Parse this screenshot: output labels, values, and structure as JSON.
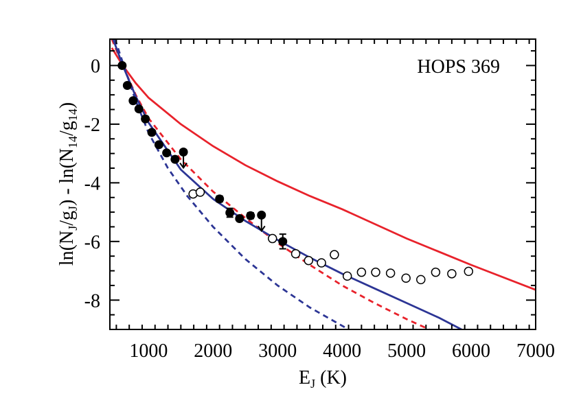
{
  "chart_data": {
    "type": "scatter",
    "annotation": "HOPS 369",
    "xlabel": {
      "main": "E",
      "sub": "J",
      "suffix": " (K)"
    },
    "ylabel": {
      "p1": "ln(N",
      "s1": "J",
      "p2": "/g",
      "s2": "J",
      "p3": ") - ln(N",
      "s3": "14",
      "p4": "/g",
      "s4": "14",
      "p5": ")"
    },
    "xlim": [
      400,
      7000
    ],
    "ylim": [
      -9,
      0.9
    ],
    "x_ticks": [
      1000,
      2000,
      3000,
      4000,
      5000,
      6000,
      7000
    ],
    "y_ticks": [
      0,
      -2,
      -4,
      -6,
      -8
    ],
    "x_tick_labels": [
      "1000",
      "2000",
      "3000",
      "4000",
      "5000",
      "6000",
      "7000"
    ],
    "y_tick_labels": [
      "0",
      "-2",
      "-4",
      "-6",
      "-8"
    ],
    "filled_points": [
      {
        "x": 590,
        "y": 0.0
      },
      {
        "x": 670,
        "y": -0.68
      },
      {
        "x": 760,
        "y": -1.2
      },
      {
        "x": 850,
        "y": -1.48
      },
      {
        "x": 950,
        "y": -1.82
      },
      {
        "x": 1050,
        "y": -2.28
      },
      {
        "x": 1160,
        "y": -2.7
      },
      {
        "x": 1280,
        "y": -2.98
      },
      {
        "x": 1410,
        "y": -3.2
      },
      {
        "x": 2100,
        "y": -4.55,
        "err": 0.1
      },
      {
        "x": 2260,
        "y": -5.02,
        "err": 0.15
      },
      {
        "x": 2410,
        "y": -5.22
      },
      {
        "x": 2580,
        "y": -5.12,
        "err": 0.1
      },
      {
        "x": 3080,
        "y": -6.0,
        "err": 0.25
      }
    ],
    "upper_limits": [
      {
        "x": 1540,
        "y": -2.95
      },
      {
        "x": 2750,
        "y": -5.1
      }
    ],
    "open_points": [
      {
        "x": 1690,
        "y": -4.38
      },
      {
        "x": 1800,
        "y": -4.32
      },
      {
        "x": 2920,
        "y": -5.9
      },
      {
        "x": 3280,
        "y": -6.42
      },
      {
        "x": 3480,
        "y": -6.65
      },
      {
        "x": 3680,
        "y": -6.73
      },
      {
        "x": 3880,
        "y": -6.45
      },
      {
        "x": 4080,
        "y": -7.18
      },
      {
        "x": 4300,
        "y": -7.05
      },
      {
        "x": 4520,
        "y": -7.05
      },
      {
        "x": 4750,
        "y": -7.08
      },
      {
        "x": 4990,
        "y": -7.25
      },
      {
        "x": 5220,
        "y": -7.3
      },
      {
        "x": 5450,
        "y": -7.05
      },
      {
        "x": 5700,
        "y": -7.1
      },
      {
        "x": 5960,
        "y": -7.02
      }
    ],
    "curves": [
      {
        "color": "#e8222b",
        "dash": false,
        "x": [
          430,
          600,
          800,
          1000,
          1500,
          2000,
          2500,
          3000,
          3500,
          4000,
          5000,
          6000,
          7000
        ],
        "y": [
          0.6,
          0.0,
          -0.6,
          -1.1,
          -2.0,
          -2.75,
          -3.4,
          -3.95,
          -4.45,
          -4.9,
          -5.9,
          -6.8,
          -7.65
        ]
      },
      {
        "color": "#e8222b",
        "dash": true,
        "x": [
          430,
          600,
          800,
          1000,
          1500,
          2000,
          2500,
          3000,
          3500,
          4000,
          4500,
          5000,
          5350
        ],
        "y": [
          0.9,
          0.0,
          -1.0,
          -1.8,
          -3.2,
          -4.3,
          -5.2,
          -6.05,
          -6.8,
          -7.5,
          -8.1,
          -8.65,
          -9.0
        ]
      },
      {
        "color": "#2c3595",
        "dash": false,
        "x": [
          450,
          600,
          800,
          1000,
          1500,
          2000,
          2500,
          3000,
          3500,
          4000,
          4500,
          5000,
          5500,
          5850
        ],
        "y": [
          0.9,
          0.0,
          -1.05,
          -1.95,
          -3.55,
          -4.55,
          -5.3,
          -5.95,
          -6.55,
          -7.1,
          -7.6,
          -8.1,
          -8.6,
          -9.0
        ]
      },
      {
        "color": "#2c3595",
        "dash": true,
        "x": [
          480,
          600,
          800,
          1000,
          1300,
          1600,
          2000,
          2500,
          3000,
          3500,
          4100
        ],
        "y": [
          0.9,
          0.1,
          -1.2,
          -2.3,
          -3.5,
          -4.45,
          -5.5,
          -6.6,
          -7.5,
          -8.25,
          -9.0
        ]
      }
    ],
    "grid": false,
    "legend": "none"
  }
}
